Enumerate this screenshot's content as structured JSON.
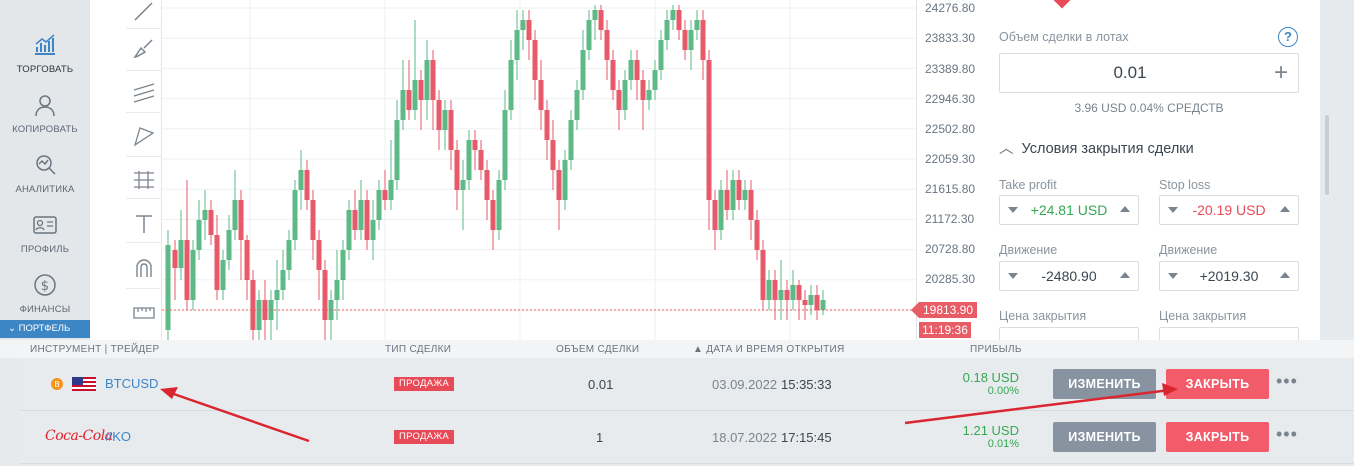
{
  "nav": {
    "items": [
      {
        "label": "ТОРГОВАТЬ",
        "icon": "chart-icon"
      },
      {
        "label": "КОПИРОВАТЬ",
        "icon": "user-icon"
      },
      {
        "label": "АНАЛИТИКА",
        "icon": "analytics-icon"
      },
      {
        "label": "ПРОФИЛЬ",
        "icon": "profile-card-icon"
      },
      {
        "label": "ФИНАНСЫ",
        "icon": "dollar-icon"
      }
    ],
    "portfolio": "ПОРТФЕЛЬ"
  },
  "chart": {
    "price_ticks": [
      "24276.80",
      "23833.30",
      "23389.80",
      "22946.30",
      "22502.80",
      "22059.30",
      "21615.80",
      "21172.30",
      "20728.80",
      "20285.30"
    ],
    "current_price": "19813.90",
    "current_time": "11:19:36",
    "colors": {
      "up": "#5dba86",
      "down": "#e8596a"
    }
  },
  "chart_data": {
    "type": "candlestick",
    "y_ticks": [
      24276.8,
      23833.3,
      23389.8,
      22946.3,
      22502.8,
      22059.3,
      21615.8,
      21172.3,
      20728.8,
      20285.3
    ],
    "current_price": 19813.9
  },
  "order": {
    "lots_label": "Объем сделки в лотах",
    "help": "?",
    "lots_value": "0.01",
    "funds": "3.96 USD  0.04% СРЕДСТВ",
    "close_conditions": "Условия закрытия сделки",
    "tp_label": "Take profit",
    "sl_label": "Stop loss",
    "tp_value": "+24.81 USD",
    "sl_value": "-20.19 USD",
    "move_label": "Движение",
    "tp_move": "-2480.90",
    "sl_move": "+2019.30",
    "close_price_label": "Цена закрытия"
  },
  "table": {
    "headers": {
      "instrument": "ИНСТРУМЕНТ | ТРЕЙДЕР",
      "type": "ТИП СДЕЛКИ",
      "volume": "ОБЪЕМ СДЕЛКИ",
      "date": "▲ ДАТА И ВРЕМЯ ОТКРЫТИЯ",
      "profit": "ПРИБЫЛЬ"
    },
    "rows": [
      {
        "symbol": "BTCUSD",
        "type": "ПРОДАЖА",
        "volume": "0.01",
        "date": "03.09.2022",
        "time": "15:35:33",
        "profit": "0.18 USD",
        "profit_pct": "0.00%",
        "edit": "ИЗМЕНИТЬ",
        "close": "ЗАКРЫТЬ"
      },
      {
        "symbol": "#KO",
        "type": "ПРОДАЖА",
        "volume": "1",
        "date": "18.07.2022",
        "time": "17:15:45",
        "profit": "1.21 USD",
        "profit_pct": "0.01%",
        "edit": "ИЗМЕНИТЬ",
        "close": "ЗАКРЫТЬ",
        "logo_text": "Coca-Cola"
      }
    ]
  }
}
